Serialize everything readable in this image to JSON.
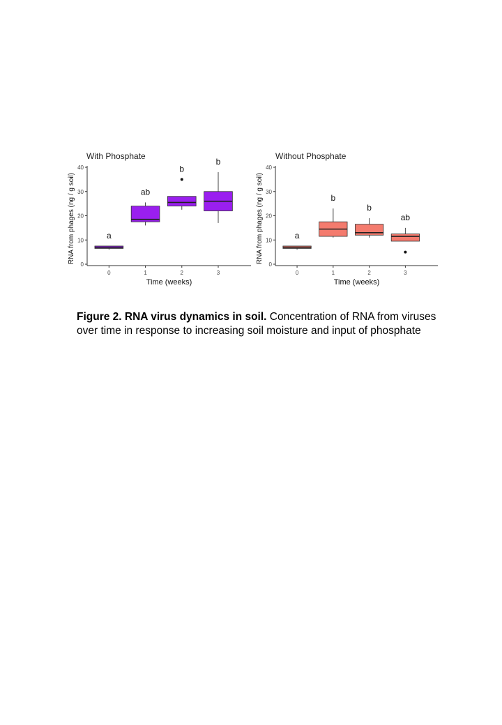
{
  "chart_data": [
    {
      "type": "box",
      "title": "With Phosphate",
      "xlabel": "Time (weeks)",
      "ylabel": "RNA from phages (ng / g soil)",
      "ylim": [
        0,
        40
      ],
      "yticks": [
        "0",
        "10",
        "20",
        "30",
        "40"
      ],
      "categories": [
        "0",
        "1",
        "2",
        "3"
      ],
      "color": "#9a1fef",
      "boxes": [
        {
          "category": "0",
          "min": 6,
          "q1": 6.5,
          "median": 7,
          "q3": 7.5,
          "max": 7.5,
          "outliers": [],
          "letter": "a"
        },
        {
          "category": "1",
          "min": 16,
          "q1": 17.5,
          "median": 18.5,
          "q3": 24,
          "max": 25.5,
          "outliers": [],
          "letter": "ab"
        },
        {
          "category": "2",
          "min": 22.5,
          "q1": 24,
          "median": 25.5,
          "q3": 28,
          "max": 28,
          "outliers": [
            35
          ],
          "letter": "b"
        },
        {
          "category": "3",
          "min": 17,
          "q1": 22,
          "median": 26,
          "q3": 30,
          "max": 38,
          "outliers": [],
          "letter": "b"
        }
      ]
    },
    {
      "type": "box",
      "title": "Without Phosphate",
      "xlabel": "Time (weeks)",
      "ylabel": "RNA from phages (ng / g soil)",
      "ylim": [
        0,
        40
      ],
      "yticks": [
        "0",
        "10",
        "20",
        "30",
        "40"
      ],
      "categories": [
        "0",
        "1",
        "2",
        "3"
      ],
      "color": "#f47b6e",
      "boxes": [
        {
          "category": "0",
          "min": 6,
          "q1": 6.5,
          "median": 7,
          "q3": 7.5,
          "max": 7.5,
          "outliers": [],
          "letter": "a"
        },
        {
          "category": "1",
          "min": 11,
          "q1": 11.5,
          "median": 14.5,
          "q3": 17.5,
          "max": 23,
          "outliers": [],
          "letter": "b"
        },
        {
          "category": "2",
          "min": 11,
          "q1": 12,
          "median": 13,
          "q3": 16.5,
          "max": 19,
          "outliers": [],
          "letter": "b"
        },
        {
          "category": "3",
          "min": 9.5,
          "q1": 9.5,
          "median": 11.5,
          "q3": 12.5,
          "max": 15,
          "outliers": [
            5
          ],
          "letter": "ab"
        }
      ]
    }
  ],
  "caption": {
    "bold": "Figure 2. RNA virus dynamics in soil.",
    "text": " Concentration of RNA from viruses over time in response to increasing soil moisture and input of phosphate"
  }
}
